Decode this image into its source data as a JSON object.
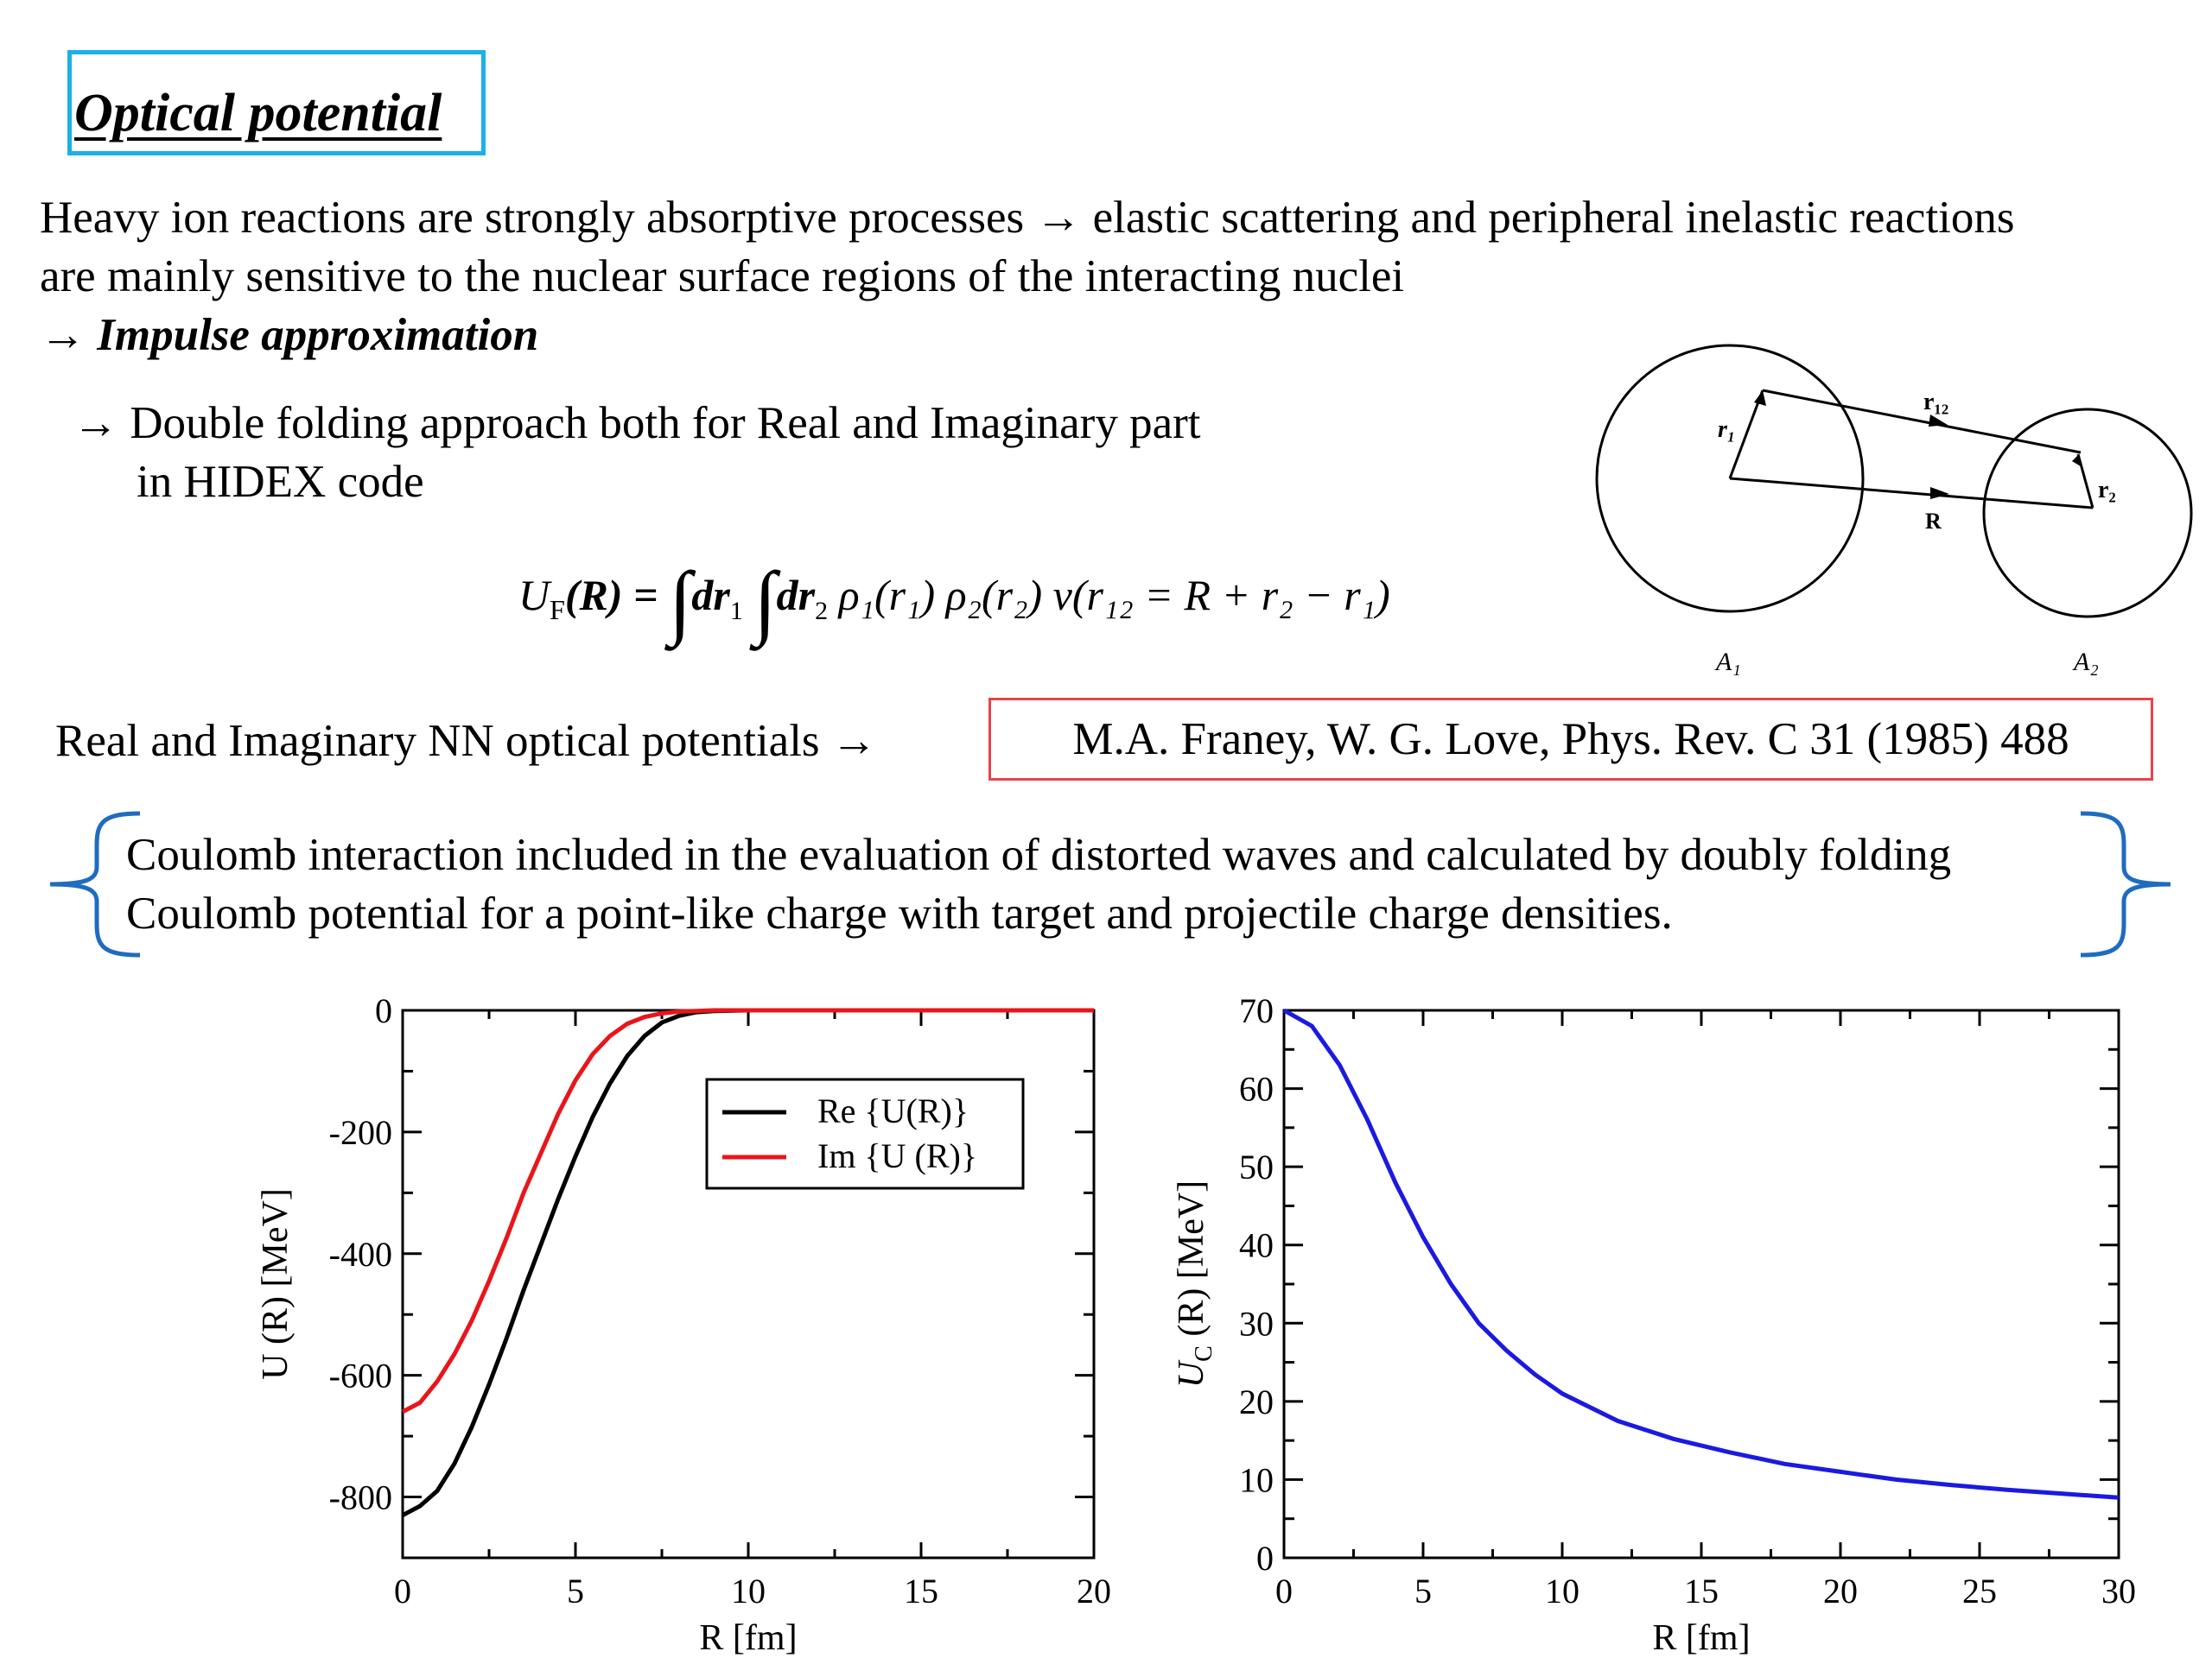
{
  "title": "Optical  potential",
  "intro": {
    "line1": "Heavy ion reactions are strongly absorptive processes → elastic scattering and peripheral inelastic reactions",
    "line2": "are mainly sensitive to the nuclear surface regions of the interacting nuclei",
    "arrow": "→",
    "impulse": "Impulse approximation"
  },
  "folding": {
    "line1": "→ Double folding approach both for Real and Imaginary part",
    "line2": "in HIDEX code"
  },
  "formula": {
    "lhs": "U",
    "lhs_sub": "F",
    "lhs_arg": "(R) =",
    "part1": "dr",
    "part2": "dr",
    "tail": "ρ₁(r₁) ρ₂(r₂) v(r₁₂ = R + r₂ − r₁)"
  },
  "diagram": {
    "labels": {
      "r1": "r₁",
      "r12": "r₁₂",
      "r2": "r₂",
      "R": "R",
      "A1": "A₁",
      "A2": "A₂"
    }
  },
  "nn_line": {
    "text": "Real and Imaginary NN optical potentials  →",
    "reference": "M.A. Franey, W. G. Love, Phys. Rev. C 31 (1985) 488"
  },
  "coulomb": {
    "line1": "Coulomb interaction included in the evaluation of distorted waves and calculated by doubly folding",
    "line2": "Coulomb potential for a point-like charge with target and projectile charge densities."
  },
  "colors": {
    "title_border": "#1ab0e8",
    "reference_border": "#e8434b",
    "brace": "#1f6cbf",
    "re_curve": "#000000",
    "im_curve": "#e8161b",
    "coulomb_curve": "#1a1ae0"
  },
  "chart_data": [
    {
      "type": "line",
      "xlabel": "R [fm]",
      "ylabel": "U (R)  [MeV]",
      "xlim": [
        0,
        20
      ],
      "ylim": [
        -900,
        0
      ],
      "xticks": [
        0,
        5,
        10,
        15,
        20
      ],
      "yticks": [
        0,
        -200,
        -400,
        -600,
        -800
      ],
      "legend_position": "top-right",
      "series": [
        {
          "name": "Re {U(R)}",
          "color": "#000000",
          "x": [
            0,
            0.5,
            1,
            1.5,
            2,
            2.5,
            3,
            3.5,
            4,
            4.5,
            5,
            5.5,
            6,
            6.5,
            7,
            7.5,
            8,
            8.5,
            9,
            10,
            12,
            15,
            20
          ],
          "y": [
            -830,
            -815,
            -790,
            -745,
            -685,
            -615,
            -540,
            -460,
            -385,
            -310,
            -240,
            -175,
            -120,
            -75,
            -42,
            -20,
            -9,
            -3,
            -1,
            0,
            0,
            0,
            0
          ]
        },
        {
          "name": "Im {U (R)}",
          "color": "#e8161b",
          "x": [
            0,
            0.5,
            1,
            1.5,
            2,
            2.5,
            3,
            3.5,
            4,
            4.5,
            5,
            5.5,
            6,
            6.5,
            7,
            7.5,
            8,
            8.5,
            9,
            10,
            12,
            15,
            20
          ],
          "y": [
            -660,
            -645,
            -610,
            -565,
            -510,
            -445,
            -375,
            -300,
            -235,
            -170,
            -115,
            -72,
            -42,
            -22,
            -11,
            -5,
            -2,
            -1,
            0,
            0,
            0,
            0,
            0
          ]
        }
      ]
    },
    {
      "type": "line",
      "xlabel": "R [fm]",
      "ylabel": "U",
      "ylabel_sub": "C",
      "ylabel_rest": " (R)  [MeV]",
      "xlim": [
        0,
        30
      ],
      "ylim": [
        0,
        70
      ],
      "xticks": [
        0,
        5,
        10,
        15,
        20,
        25,
        30
      ],
      "yticks": [
        0,
        10,
        20,
        30,
        40,
        50,
        60,
        70
      ],
      "series": [
        {
          "color": "#1a1ae0",
          "x": [
            0,
            1,
            2,
            3,
            4,
            5,
            6,
            7,
            8,
            9,
            10,
            12,
            14,
            16,
            18,
            20,
            22,
            24,
            26,
            28,
            30
          ],
          "y": [
            70,
            68,
            63,
            56,
            48,
            41,
            35,
            30,
            26.5,
            23.5,
            21,
            17.5,
            15.2,
            13.5,
            12,
            11,
            10,
            9.3,
            8.7,
            8.2,
            7.7
          ]
        }
      ]
    }
  ]
}
